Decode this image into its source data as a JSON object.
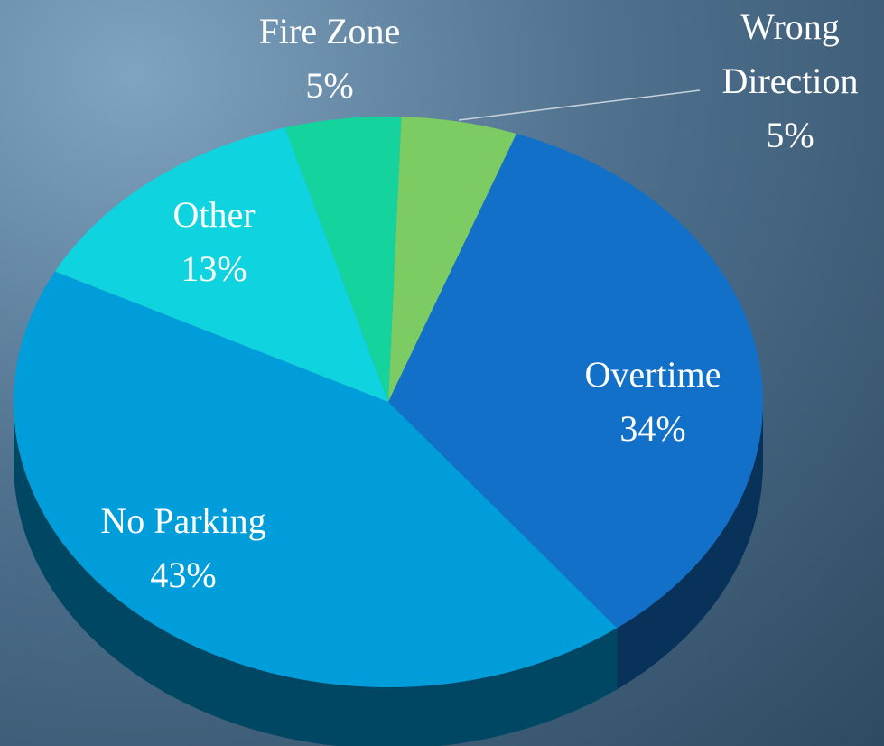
{
  "chart_data": {
    "type": "pie",
    "categories": [
      "Wrong Direction",
      "Overtime",
      "No Parking",
      "Other",
      "Fire Zone"
    ],
    "values": [
      5,
      34,
      43,
      13,
      5
    ],
    "value_labels": [
      "5%",
      "34%",
      "43%",
      "13%",
      "5%"
    ],
    "colors": [
      "#7dcc63",
      "#1270c8",
      "#009ddb",
      "#0fd3de",
      "#14d39c"
    ]
  }
}
